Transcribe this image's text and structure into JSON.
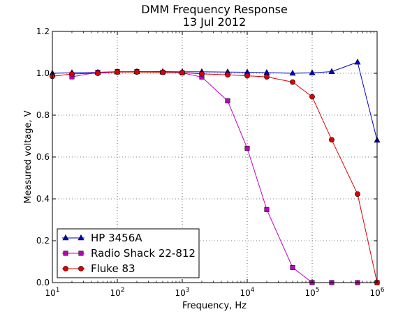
{
  "chart_data": {
    "type": "line",
    "title": "DMM Frequency Response",
    "subtitle": "13 Jul 2012",
    "xlabel": "Frequency, Hz",
    "ylabel": "Measured voltage, V",
    "xscale": "log",
    "xlim": [
      10,
      1000000
    ],
    "ylim": [
      0.0,
      1.2
    ],
    "xticks": [
      {
        "value": 10,
        "base": "10",
        "exp": "1"
      },
      {
        "value": 100,
        "base": "10",
        "exp": "2"
      },
      {
        "value": 1000,
        "base": "10",
        "exp": "3"
      },
      {
        "value": 10000,
        "base": "10",
        "exp": "4"
      },
      {
        "value": 100000,
        "base": "10",
        "exp": "5"
      },
      {
        "value": 1000000,
        "base": "10",
        "exp": "6"
      }
    ],
    "yticks": [
      {
        "value": 0.0,
        "label": "0.0"
      },
      {
        "value": 0.2,
        "label": "0.2"
      },
      {
        "value": 0.4,
        "label": "0.4"
      },
      {
        "value": 0.6,
        "label": "0.6"
      },
      {
        "value": 0.8,
        "label": "0.8"
      },
      {
        "value": 1.0,
        "label": "1.0"
      },
      {
        "value": 1.2,
        "label": "1.2"
      }
    ],
    "grid": true,
    "legend_position": "lower-left",
    "series": [
      {
        "name": "HP 3456A",
        "color": "#0000cc",
        "marker": "triangle",
        "points": [
          [
            10,
            1.0
          ],
          [
            20,
            1.002
          ],
          [
            50,
            1.004
          ],
          [
            100,
            1.006
          ],
          [
            200,
            1.008
          ],
          [
            500,
            1.008
          ],
          [
            1000,
            1.007
          ],
          [
            2000,
            1.007
          ],
          [
            5000,
            1.006
          ],
          [
            10000,
            1.005
          ],
          [
            20000,
            1.003
          ],
          [
            50000,
            1.0
          ],
          [
            100000,
            1.002
          ],
          [
            200000,
            1.008
          ],
          [
            500000,
            1.053
          ],
          [
            1000000,
            0.68
          ]
        ]
      },
      {
        "name": "Radio Shack 22-812",
        "color": "#bf00bf",
        "marker": "square",
        "points": [
          [
            20,
            0.983
          ],
          [
            50,
            1.005
          ],
          [
            100,
            1.008
          ],
          [
            200,
            1.008
          ],
          [
            500,
            1.005
          ],
          [
            1000,
            1.002
          ],
          [
            2000,
            0.982
          ],
          [
            5000,
            0.868
          ],
          [
            10000,
            0.642
          ],
          [
            20000,
            0.349
          ],
          [
            50000,
            0.072
          ],
          [
            100000,
            0.0
          ],
          [
            200000,
            0.0
          ],
          [
            500000,
            0.0
          ],
          [
            1000000,
            0.0
          ]
        ]
      },
      {
        "name": "Fluke 83",
        "color": "#dd0000",
        "marker": "circle",
        "points": [
          [
            10,
            0.985
          ],
          [
            20,
            0.997
          ],
          [
            50,
            1.0
          ],
          [
            100,
            1.006
          ],
          [
            200,
            1.006
          ],
          [
            500,
            1.005
          ],
          [
            1000,
            1.003
          ],
          [
            2000,
            0.997
          ],
          [
            5000,
            0.993
          ],
          [
            10000,
            0.988
          ],
          [
            20000,
            0.983
          ],
          [
            50000,
            0.958
          ],
          [
            100000,
            0.888
          ],
          [
            200000,
            0.682
          ],
          [
            500000,
            0.423
          ],
          [
            1000000,
            0.0
          ]
        ]
      }
    ]
  }
}
